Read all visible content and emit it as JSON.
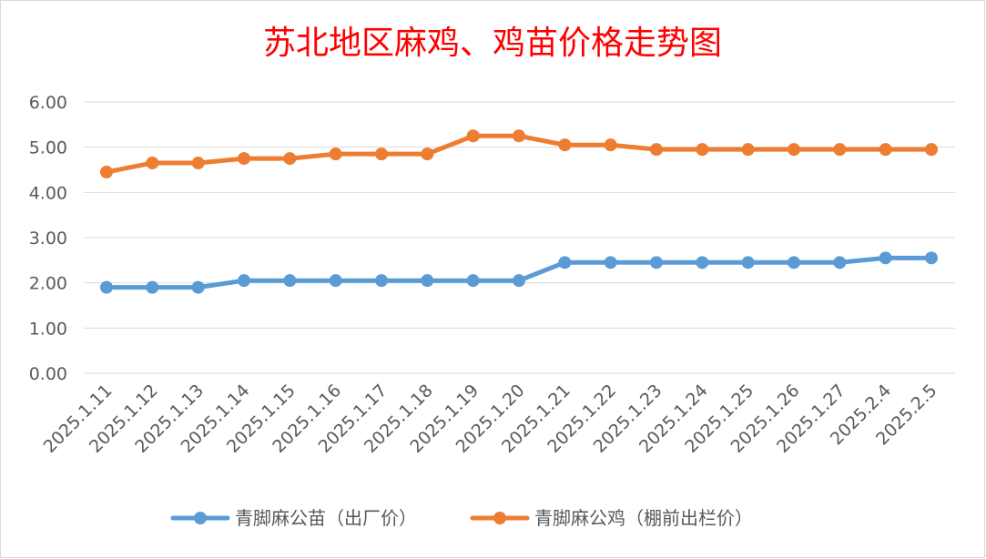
{
  "chart_data": {
    "type": "line",
    "title": "苏北地区麻鸡、鸡苗价格走势图",
    "xlabel": "",
    "ylabel": "",
    "ylim": [
      0,
      6
    ],
    "yticks": [
      "0.00",
      "1.00",
      "2.00",
      "3.00",
      "4.00",
      "5.00",
      "6.00"
    ],
    "grid": true,
    "legend_position": "bottom",
    "categories": [
      "2025.1.11",
      "2025.1.12",
      "2025.1.13",
      "2025.1.14",
      "2025.1.15",
      "2025.1.16",
      "2025.1.17",
      "2025.1.18",
      "2025.1.19",
      "2025.1.20",
      "2025.1.21",
      "2025.1.22",
      "2025.1.23",
      "2025.1.24",
      "2025.1.25",
      "2025.1.26",
      "2025.1.27",
      "2025.2.4",
      "2025.2.5"
    ],
    "series": [
      {
        "name": "青脚麻公苗（出厂价）",
        "color": "#5b9bd5",
        "values": [
          1.9,
          1.9,
          1.9,
          2.05,
          2.05,
          2.05,
          2.05,
          2.05,
          2.05,
          2.05,
          2.45,
          2.45,
          2.45,
          2.45,
          2.45,
          2.45,
          2.45,
          2.55,
          2.55
        ]
      },
      {
        "name": "青脚麻公鸡（棚前出栏价）",
        "color": "#ed7d31",
        "values": [
          4.45,
          4.65,
          4.65,
          4.75,
          4.75,
          4.85,
          4.85,
          4.85,
          5.25,
          5.25,
          5.05,
          5.05,
          4.95,
          4.95,
          4.95,
          4.95,
          4.95,
          4.95,
          4.95
        ]
      }
    ]
  }
}
